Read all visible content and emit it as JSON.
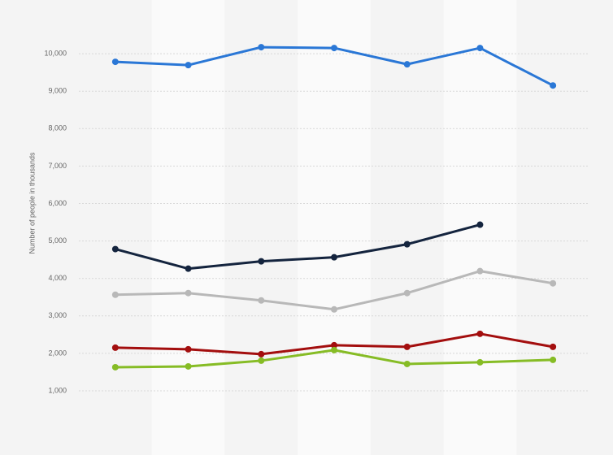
{
  "chart_data": {
    "type": "line",
    "y_label": "Number of people in thousands",
    "categories": [
      null,
      null,
      null,
      null,
      null,
      null,
      null
    ],
    "series": [
      {
        "color": "#2a77d6",
        "values": [
          9783,
          9696,
          10174,
          10152,
          9717,
          10152,
          9152
        ]
      },
      {
        "color": "#14243e",
        "values": [
          4783,
          4261,
          4457,
          4565,
          4913,
          5435,
          null
        ]
      },
      {
        "color": "#b8b8b8",
        "values": [
          3565,
          3609,
          3413,
          3174,
          3609,
          4196,
          3870
        ]
      },
      {
        "color": "#a30e0e",
        "values": [
          2152,
          2109,
          1978,
          2217,
          2174,
          2522,
          2174
        ]
      },
      {
        "color": "#86bc25",
        "values": [
          1630,
          1652,
          1804,
          2087,
          1717,
          1761,
          1826
        ]
      }
    ],
    "ylim": [
      1000,
      11000
    ],
    "yticks": [
      {
        "value": 1000,
        "label": "1,000"
      },
      {
        "value": 2000,
        "label": "2,000"
      },
      {
        "value": 3000,
        "label": "3,000"
      },
      {
        "value": 4000,
        "label": "4,000"
      },
      {
        "value": 5000,
        "label": "5,000"
      },
      {
        "value": 6000,
        "label": "6,000"
      },
      {
        "value": 7000,
        "label": "7,000"
      },
      {
        "value": 8000,
        "label": "8,000"
      },
      {
        "value": 9000,
        "label": "9,000"
      },
      {
        "value": 10000,
        "label": "10,000"
      }
    ],
    "grid": true
  }
}
